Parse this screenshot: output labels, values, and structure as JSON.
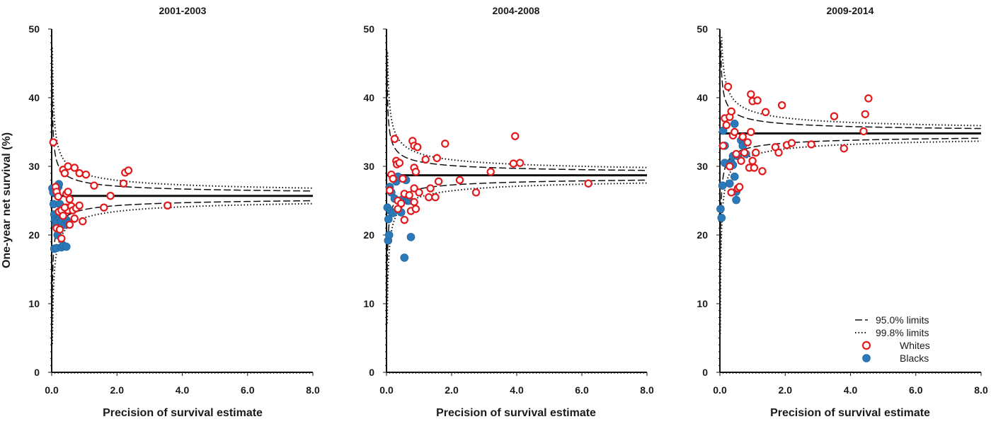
{
  "figure": {
    "ylabel": "One-year net survival (%)",
    "xlabel": "Precision of survival estimate"
  },
  "colors": {
    "whites": "#e31a1c",
    "blacks": "#2b79b8",
    "lines": "#111111"
  },
  "legend": {
    "limit95": "95.0% limits",
    "limit998": "99.8% limits",
    "whites": "Whites",
    "blacks": "Blacks",
    "placement": "bottom-right of third panel"
  },
  "chart_data": [
    {
      "type": "scatter",
      "title": "2001-2003",
      "xlabel": "Precision of survival estimate",
      "ylabel": "One-year net survival (%)",
      "xlim": [
        0,
        8
      ],
      "ylim": [
        0,
        50
      ],
      "xticks": [
        "0.0",
        "2.0",
        "4.0",
        "6.0",
        "8.0"
      ],
      "yticks": [
        "0",
        "10",
        "20",
        "30",
        "40",
        "50"
      ],
      "target": 25.7,
      "limits_95_halfwidth_k": 2.0,
      "limits_998_halfwidth_k": 3.2,
      "series": [
        {
          "name": "Whites",
          "points": [
            [
              0.05,
              33.5
            ],
            [
              0.12,
              27.0
            ],
            [
              0.15,
              26.3
            ],
            [
              0.2,
              25.6
            ],
            [
              0.22,
              23.4
            ],
            [
              0.15,
              21.0
            ],
            [
              0.25,
              20.8
            ],
            [
              0.3,
              23.6
            ],
            [
              0.35,
              22.8
            ],
            [
              0.35,
              29.5
            ],
            [
              0.4,
              29.0
            ],
            [
              0.45,
              26.0
            ],
            [
              0.45,
              24.0
            ],
            [
              0.5,
              30.0
            ],
            [
              0.5,
              26.3
            ],
            [
              0.5,
              23.6
            ],
            [
              0.55,
              25.2
            ],
            [
              0.55,
              21.5
            ],
            [
              0.6,
              24.2
            ],
            [
              0.65,
              23.6
            ],
            [
              0.7,
              29.8
            ],
            [
              0.7,
              22.4
            ],
            [
              0.75,
              23.9
            ],
            [
              0.85,
              29.0
            ],
            [
              0.85,
              24.3
            ],
            [
              0.95,
              22.0
            ],
            [
              1.05,
              28.8
            ],
            [
              1.3,
              27.2
            ],
            [
              1.6,
              24.0
            ],
            [
              1.8,
              25.7
            ],
            [
              2.2,
              27.5
            ],
            [
              2.25,
              29.1
            ],
            [
              2.35,
              29.4
            ],
            [
              3.55,
              24.3
            ],
            [
              0.3,
              19.5
            ],
            [
              0.4,
              24.0
            ]
          ]
        },
        {
          "name": "Blacks",
          "points": [
            [
              0.02,
              26.8
            ],
            [
              0.05,
              26.2
            ],
            [
              0.06,
              24.5
            ],
            [
              0.08,
              23.0
            ],
            [
              0.1,
              22.2
            ],
            [
              0.08,
              18.0
            ],
            [
              0.12,
              21.5
            ],
            [
              0.15,
              22.0
            ],
            [
              0.15,
              18.1
            ],
            [
              0.18,
              20.0
            ],
            [
              0.2,
              27.0
            ],
            [
              0.22,
              27.4
            ],
            [
              0.25,
              24.5
            ],
            [
              0.25,
              22.5
            ],
            [
              0.3,
              22.0
            ],
            [
              0.3,
              18.2
            ],
            [
              0.35,
              18.5
            ],
            [
              0.4,
              21.5
            ],
            [
              0.45,
              22.2
            ],
            [
              0.45,
              18.3
            ],
            [
              0.5,
              21.8
            ],
            [
              0.18,
              25.8
            ],
            [
              0.28,
              23.0
            ]
          ]
        }
      ]
    },
    {
      "type": "scatter",
      "title": "2004-2008",
      "xlabel": "Precision of survival estimate",
      "ylabel": "",
      "xlim": [
        0,
        8
      ],
      "ylim": [
        0,
        50
      ],
      "xticks": [
        "0.0",
        "2.0",
        "4.0",
        "6.0",
        "8.0"
      ],
      "yticks": [
        "0",
        "10",
        "20",
        "30",
        "40",
        "50"
      ],
      "target": 28.7,
      "limits_95_halfwidth_k": 2.0,
      "limits_998_halfwidth_k": 3.2,
      "series": [
        {
          "name": "Whites",
          "points": [
            [
              0.1,
              26.5
            ],
            [
              0.15,
              28.8
            ],
            [
              0.2,
              28.2
            ],
            [
              0.25,
              34.0
            ],
            [
              0.3,
              30.8
            ],
            [
              0.32,
              30.3
            ],
            [
              0.35,
              25.0
            ],
            [
              0.35,
              23.8
            ],
            [
              0.4,
              30.5
            ],
            [
              0.45,
              24.6
            ],
            [
              0.5,
              28.2
            ],
            [
              0.55,
              22.2
            ],
            [
              0.55,
              26.0
            ],
            [
              0.7,
              25.8
            ],
            [
              0.75,
              23.5
            ],
            [
              0.8,
              33.7
            ],
            [
              0.85,
              33.0
            ],
            [
              0.85,
              29.8
            ],
            [
              0.85,
              24.8
            ],
            [
              0.85,
              26.8
            ],
            [
              0.9,
              29.2
            ],
            [
              0.9,
              23.8
            ],
            [
              0.95,
              32.8
            ],
            [
              1.0,
              26.2
            ],
            [
              1.2,
              31.0
            ],
            [
              1.3,
              25.5
            ],
            [
              1.35,
              26.8
            ],
            [
              1.5,
              25.5
            ],
            [
              1.55,
              31.2
            ],
            [
              1.6,
              27.8
            ],
            [
              1.8,
              33.3
            ],
            [
              2.25,
              28.0
            ],
            [
              2.75,
              26.2
            ],
            [
              3.2,
              29.2
            ],
            [
              3.9,
              30.4
            ],
            [
              3.95,
              34.4
            ],
            [
              4.1,
              30.5
            ],
            [
              6.2,
              27.5
            ]
          ]
        },
        {
          "name": "Blacks",
          "points": [
            [
              0.03,
              24.0
            ],
            [
              0.05,
              19.2
            ],
            [
              0.06,
              22.3
            ],
            [
              0.08,
              20.0
            ],
            [
              0.1,
              27.0
            ],
            [
              0.12,
              23.5
            ],
            [
              0.15,
              26.2
            ],
            [
              0.2,
              23.2
            ],
            [
              0.25,
              25.3
            ],
            [
              0.28,
              28.0
            ],
            [
              0.3,
              27.8
            ],
            [
              0.35,
              28.5
            ],
            [
              0.4,
              25.0
            ],
            [
              0.45,
              24.8
            ],
            [
              0.5,
              25.2
            ],
            [
              0.55,
              16.7
            ],
            [
              0.6,
              28.0
            ],
            [
              0.65,
              25.0
            ],
            [
              0.7,
              25.0
            ],
            [
              0.75,
              19.7
            ],
            [
              0.45,
              23.3
            ]
          ]
        }
      ]
    },
    {
      "type": "scatter",
      "title": "2009-2014",
      "xlabel": "Precision of survival estimate",
      "ylabel": "",
      "xlim": [
        0,
        8
      ],
      "ylim": [
        0,
        50
      ],
      "xticks": [
        "0.0",
        "2.0",
        "4.0",
        "6.0",
        "8.0"
      ],
      "yticks": [
        "0",
        "10",
        "20",
        "30",
        "40",
        "50"
      ],
      "target": 34.8,
      "limits_95_halfwidth_k": 2.0,
      "limits_998_halfwidth_k": 3.2,
      "series": [
        {
          "name": "Whites",
          "points": [
            [
              0.1,
              33.0
            ],
            [
              0.15,
              37.0
            ],
            [
              0.2,
              36.0
            ],
            [
              0.25,
              41.6
            ],
            [
              0.3,
              37.2
            ],
            [
              0.3,
              30.0
            ],
            [
              0.35,
              38.0
            ],
            [
              0.35,
              26.2
            ],
            [
              0.4,
              34.5
            ],
            [
              0.45,
              35.0
            ],
            [
              0.5,
              31.8
            ],
            [
              0.55,
              26.8
            ],
            [
              0.6,
              27.0
            ],
            [
              0.65,
              30.8
            ],
            [
              0.7,
              34.3
            ],
            [
              0.75,
              32.0
            ],
            [
              0.85,
              33.5
            ],
            [
              0.9,
              29.8
            ],
            [
              0.95,
              40.5
            ],
            [
              0.95,
              35.0
            ],
            [
              1.0,
              39.5
            ],
            [
              1.0,
              30.8
            ],
            [
              1.05,
              29.8
            ],
            [
              1.1,
              32.0
            ],
            [
              1.15,
              39.6
            ],
            [
              1.3,
              29.3
            ],
            [
              1.4,
              37.9
            ],
            [
              1.7,
              32.8
            ],
            [
              1.8,
              32.0
            ],
            [
              1.9,
              38.9
            ],
            [
              2.05,
              33.1
            ],
            [
              2.2,
              33.4
            ],
            [
              2.8,
              33.2
            ],
            [
              3.5,
              37.3
            ],
            [
              3.8,
              32.6
            ],
            [
              4.4,
              35.1
            ],
            [
              4.45,
              37.6
            ],
            [
              4.55,
              39.9
            ]
          ]
        },
        {
          "name": "Blacks",
          "points": [
            [
              0.02,
              23.8
            ],
            [
              0.05,
              22.5
            ],
            [
              0.08,
              27.2
            ],
            [
              0.1,
              35.2
            ],
            [
              0.15,
              33.0
            ],
            [
              0.15,
              30.5
            ],
            [
              0.3,
              27.5
            ],
            [
              0.35,
              30.5
            ],
            [
              0.4,
              31.5
            ],
            [
              0.4,
              30.2
            ],
            [
              0.45,
              36.2
            ],
            [
              0.45,
              28.5
            ],
            [
              0.5,
              25.1
            ],
            [
              0.5,
              26.3
            ],
            [
              0.55,
              31.5
            ],
            [
              0.65,
              33.8
            ],
            [
              0.7,
              33.0
            ],
            [
              0.75,
              32.0
            ],
            [
              0.8,
              31.8
            ]
          ]
        }
      ]
    }
  ]
}
